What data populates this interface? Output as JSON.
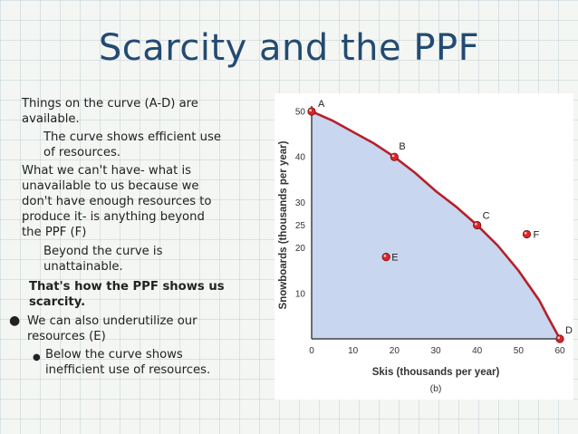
{
  "slide": {
    "title": "Scarcity and the PPF",
    "bullets": [
      {
        "text": "Things on the curve (A-D) are\navailable."
      },
      {
        "text": "The curve shows efficient use\nof resources."
      },
      {
        "text": "What we can't have- what is\nunavailable to us because we\ndon't have enough resources to\nproduce it- is anything beyond\nthe PPF (F)"
      },
      {
        "text": "Beyond the curve is\nunattainable."
      },
      {
        "text": "That's how the PPF shows us\nscarcity."
      },
      {
        "text": "We can also underutilize our\nresources (E)"
      },
      {
        "text": "Below the curve shows\ninefficient use of resources."
      }
    ]
  },
  "chart_data": {
    "type": "line",
    "xlabel": "Skis (thousands per year)",
    "ylabel": "Snowboards (thousands per year)",
    "caption": "(b)",
    "xlim": [
      0,
      60
    ],
    "ylim": [
      0,
      50
    ],
    "xticks": [
      0,
      10,
      20,
      30,
      40,
      50,
      60
    ],
    "yticks": [
      10,
      20,
      25,
      30,
      40,
      50
    ],
    "series": [
      {
        "x": [
          0,
          5,
          10,
          15,
          20,
          25,
          30,
          35,
          40,
          45,
          50,
          55,
          57,
          60
        ],
        "y": [
          50,
          48,
          45.5,
          43,
          40,
          36.5,
          32.5,
          29,
          25,
          20.5,
          15,
          8.5,
          5,
          0
        ]
      }
    ],
    "points": [
      {
        "label": "A",
        "x": 0,
        "y": 50,
        "on_curve": true
      },
      {
        "label": "B",
        "x": 20,
        "y": 40,
        "on_curve": true
      },
      {
        "label": "C",
        "x": 40,
        "y": 25,
        "on_curve": true
      },
      {
        "label": "D",
        "x": 60,
        "y": 0,
        "on_curve": true
      },
      {
        "label": "E",
        "x": 18,
        "y": 18,
        "on_curve": false
      },
      {
        "label": "F",
        "x": 52,
        "y": 23,
        "on_curve": false
      }
    ],
    "colors": {
      "curve": "#b5212b",
      "fill": "#c9d6ef",
      "point": "#d8262b"
    }
  }
}
